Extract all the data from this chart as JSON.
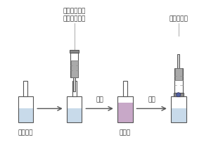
{
  "bg_color": "#ffffff",
  "bottle_fill_light_blue": "#c8daea",
  "bottle_fill_purple": "#c8a8c8",
  "bottle_fill_blue_small": "#8090c0",
  "syringe_body_color": "#e8e8e8",
  "syringe_border_color": "#555555",
  "bottle_border_color": "#555555",
  "arrow_color": "#555555",
  "text_color": "#333333",
  "labels": {
    "step1": "样品溶液",
    "step3": "乳浊液",
    "arrow1": "轻摇",
    "arrow2": "离心",
    "syringe_label": "快速注入含萃\n取剂的分散剂",
    "extract_label": "吸取萃取液"
  },
  "figsize": [
    3.0,
    2.19
  ],
  "dpi": 100
}
